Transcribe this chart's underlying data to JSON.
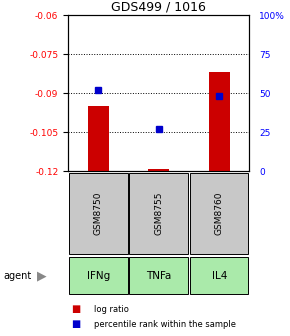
{
  "title": "GDS499 / 1016",
  "samples": [
    "GSM8750",
    "GSM8755",
    "GSM8760"
  ],
  "agents": [
    "IFNg",
    "TNFa",
    "IL4"
  ],
  "log_ratios": [
    -0.095,
    -0.119,
    -0.082
  ],
  "percentile_ranks": [
    52,
    27,
    48
  ],
  "ylim_left": [
    -0.12,
    -0.06
  ],
  "ylim_right": [
    0,
    100
  ],
  "yticks_left": [
    -0.12,
    -0.105,
    -0.09,
    -0.075,
    -0.06
  ],
  "yticks_right": [
    0,
    25,
    50,
    75,
    100
  ],
  "ytick_labels_left": [
    "-0.12",
    "-0.105",
    "-0.09",
    "-0.075",
    "-0.06"
  ],
  "ytick_labels_right": [
    "0",
    "25",
    "50",
    "75",
    "100%"
  ],
  "bar_color": "#cc0000",
  "dot_color": "#0000cc",
  "gsm_bg": "#c8c8c8",
  "agent_bg_color": "#aaeaaa",
  "bar_width": 0.35,
  "fig_width": 2.9,
  "fig_height": 3.36,
  "dpi": 100
}
